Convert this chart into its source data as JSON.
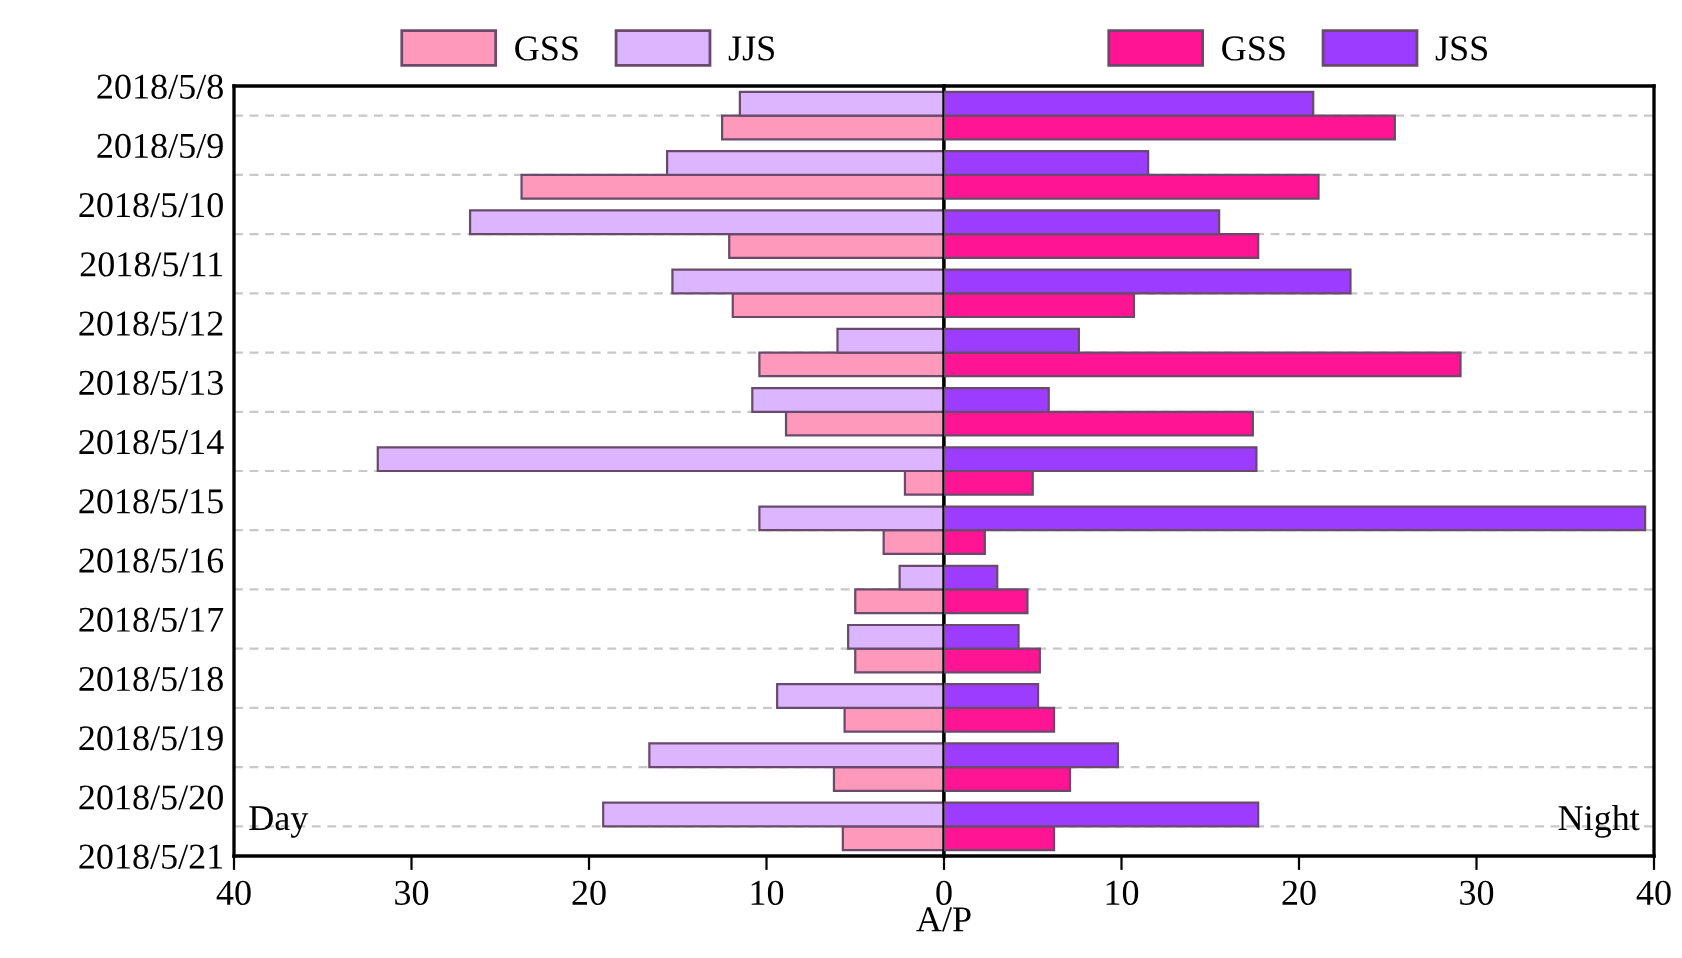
{
  "chart_data": [
    {
      "type": "bar",
      "orientation": "horizontal",
      "xlabel": "A/P",
      "categories": [
        "2018/5/8",
        "2018/5/9",
        "2018/5/10",
        "2018/5/11",
        "2018/5/12",
        "2018/5/13",
        "2018/5/14",
        "2018/5/15",
        "2018/5/16",
        "2018/5/17",
        "2018/5/18",
        "2018/5/19",
        "2018/5/20",
        "2018/5/21"
      ],
      "series": [
        {
          "name": "GSS",
          "color": "#ff99bb",
          "values": [
            null,
            12.5,
            23.8,
            12.1,
            11.9,
            10.4,
            8.9,
            2.2,
            3.4,
            5.0,
            5.0,
            5.6,
            6.2,
            5.7
          ]
        },
        {
          "name": "JJS",
          "color": "#dbb6ff",
          "values": [
            11.5,
            15.6,
            26.7,
            15.3,
            6.0,
            10.8,
            31.9,
            10.4,
            2.5,
            5.4,
            9.4,
            16.6,
            19.2,
            null
          ]
        }
      ],
      "xlim": [
        40,
        0
      ],
      "xticks": [
        40,
        30,
        20,
        10,
        0
      ],
      "grid": "y",
      "legend": "top",
      "annotations": [
        "Day"
      ]
    },
    {
      "type": "bar",
      "orientation": "horizontal",
      "categories": [
        "2018/5/8",
        "2018/5/9",
        "2018/5/10",
        "2018/5/11",
        "2018/5/12",
        "2018/5/13",
        "2018/5/14",
        "2018/5/15",
        "2018/5/16",
        "2018/5/17",
        "2018/5/18",
        "2018/5/19",
        "2018/5/20",
        "2018/5/21"
      ],
      "series": [
        {
          "name": "GSS",
          "color": "#ff1493",
          "values": [
            null,
            25.4,
            21.1,
            17.7,
            10.7,
            29.1,
            17.4,
            5.0,
            2.3,
            4.7,
            5.4,
            6.2,
            7.1,
            6.2
          ]
        },
        {
          "name": "JSS",
          "color": "#9b3cff",
          "values": [
            20.8,
            11.5,
            15.5,
            22.9,
            7.6,
            5.9,
            17.6,
            39.5,
            3.0,
            4.2,
            5.3,
            9.8,
            17.7,
            null
          ]
        }
      ],
      "xlim": [
        0,
        40
      ],
      "xticks": [
        10,
        20,
        30,
        40
      ],
      "grid": "y",
      "legend": "top",
      "tick_labels": "x",
      "annotations": [
        "Night"
      ]
    }
  ]
}
